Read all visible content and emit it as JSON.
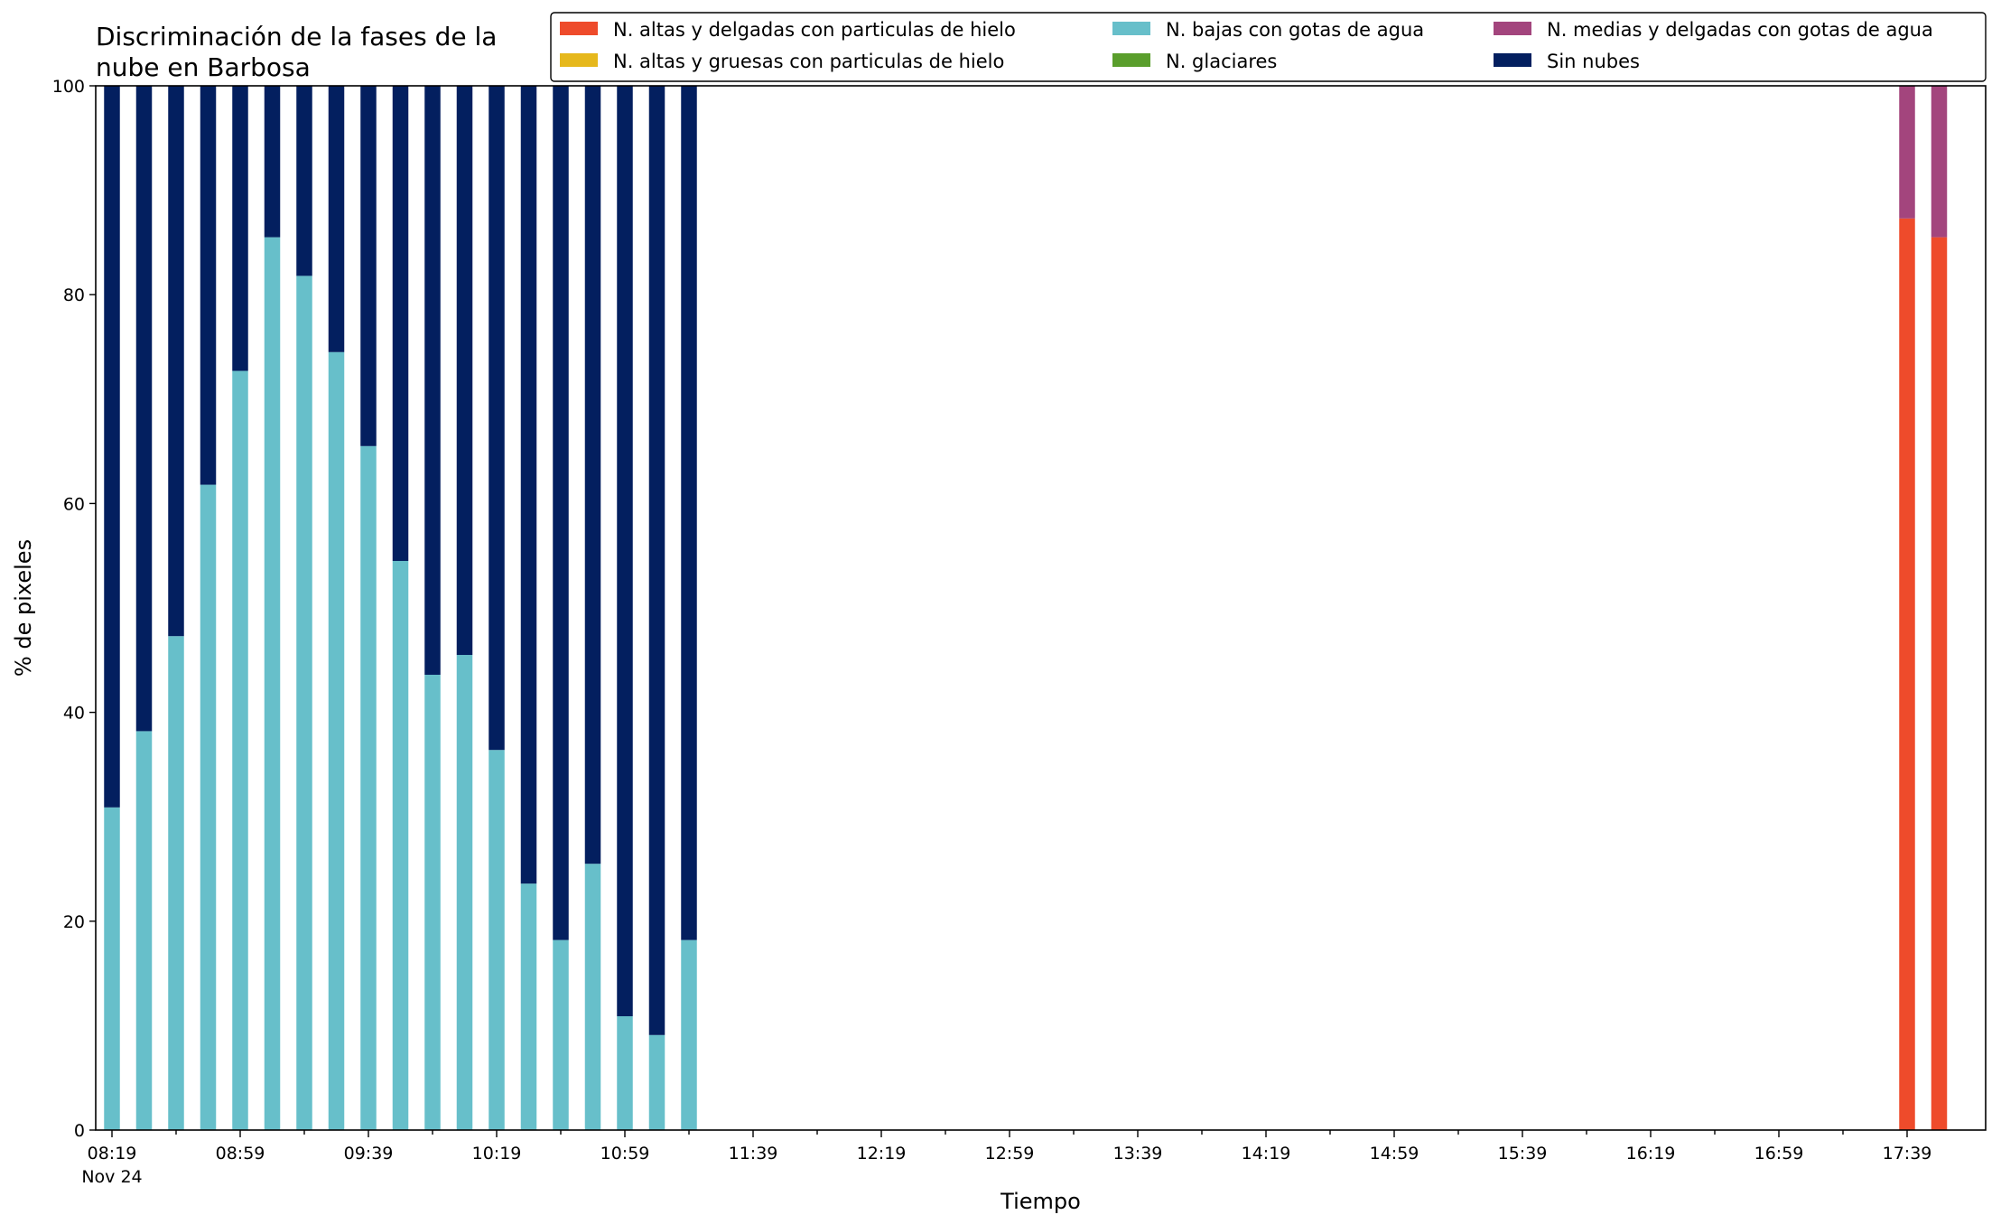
{
  "chart_data": {
    "type": "bar",
    "stacked": true,
    "title": "Discriminación de la fases de la\nnube en Barbosa",
    "xlabel": "Tiempo",
    "ylabel": "% de pixeles",
    "ylim": [
      0,
      100
    ],
    "yticks": [
      "0",
      "20",
      "40",
      "60",
      "80",
      "100"
    ],
    "xticks": [
      "08:19",
      "08:59",
      "09:39",
      "10:19",
      "10:59",
      "11:39",
      "12:19",
      "12:59",
      "13:39",
      "14:19",
      "14:59",
      "15:39",
      "16:19",
      "16:59",
      "17:39"
    ],
    "xtick_sublabel": "Nov 24",
    "legend_position": "top-right",
    "categories": [
      "08:19",
      "08:29",
      "08:39",
      "08:49",
      "08:59",
      "09:09",
      "09:19",
      "09:29",
      "09:39",
      "09:49",
      "09:59",
      "10:09",
      "10:19",
      "10:29",
      "10:39",
      "10:49",
      "10:59",
      "11:09",
      "11:19",
      "11:29",
      "11:39",
      "11:49",
      "11:59",
      "12:09",
      "12:19",
      "12:29",
      "12:39",
      "12:49",
      "12:59",
      "13:09",
      "13:19",
      "13:29",
      "13:39",
      "13:49",
      "13:59",
      "14:09",
      "14:19",
      "14:29",
      "14:39",
      "14:49",
      "14:59",
      "15:09",
      "15:19",
      "15:29",
      "15:39",
      "15:49",
      "15:59",
      "16:09",
      "16:19",
      "16:29",
      "16:39",
      "16:49",
      "16:59",
      "17:09",
      "17:19",
      "17:29",
      "17:39",
      "17:49"
    ],
    "series": [
      {
        "name": "N. altas y delgadas con particulas de hielo",
        "color": "#ee4b2b",
        "values": [
          0,
          0,
          0,
          0,
          0,
          0,
          0,
          0,
          0,
          0,
          0,
          0,
          0,
          0,
          0,
          0,
          0,
          0,
          0,
          0,
          0,
          0,
          0,
          0,
          0,
          0,
          0,
          0,
          0,
          0,
          0,
          0,
          0,
          0,
          0,
          0,
          0,
          0,
          0,
          0,
          0,
          0,
          0,
          0,
          0,
          0,
          0,
          0,
          0,
          0,
          0,
          0,
          0,
          0,
          0,
          0,
          87.3,
          85.5
        ]
      },
      {
        "name": "N. altas y gruesas con particulas de hielo",
        "color": "#e6b81c",
        "values": [
          0,
          0,
          0,
          0,
          0,
          0,
          0,
          0,
          0,
          0,
          0,
          0,
          0,
          0,
          0,
          0,
          0,
          0,
          0,
          0,
          0,
          0,
          0,
          0,
          0,
          0,
          0,
          0,
          0,
          0,
          0,
          0,
          0,
          0,
          0,
          0,
          0,
          0,
          0,
          0,
          0,
          0,
          0,
          0,
          0,
          0,
          0,
          0,
          0,
          0,
          0,
          0,
          0,
          0,
          0,
          0,
          0,
          0
        ]
      },
      {
        "name": "N. bajas con gotas de agua",
        "color": "#67bfca",
        "values": [
          30.9,
          38.2,
          47.3,
          61.8,
          72.7,
          85.5,
          81.8,
          74.5,
          65.5,
          54.5,
          43.6,
          45.5,
          36.4,
          23.6,
          18.2,
          25.5,
          10.9,
          9.1,
          18.2,
          0,
          0,
          0,
          0,
          0,
          0,
          0,
          0,
          0,
          0,
          0,
          0,
          0,
          0,
          0,
          0,
          0,
          0,
          0,
          0,
          0,
          0,
          0,
          0,
          0,
          0,
          0,
          0,
          0,
          0,
          0,
          0,
          0,
          0,
          0,
          0,
          0,
          0,
          0
        ]
      },
      {
        "name": "N. glaciares",
        "color": "#5a9e2c",
        "values": [
          0,
          0,
          0,
          0,
          0,
          0,
          0,
          0,
          0,
          0,
          0,
          0,
          0,
          0,
          0,
          0,
          0,
          0,
          0,
          0,
          0,
          0,
          0,
          0,
          0,
          0,
          0,
          0,
          0,
          0,
          0,
          0,
          0,
          0,
          0,
          0,
          0,
          0,
          0,
          0,
          0,
          0,
          0,
          0,
          0,
          0,
          0,
          0,
          0,
          0,
          0,
          0,
          0,
          0,
          0,
          0,
          0,
          0
        ]
      },
      {
        "name": "N. medias y delgadas con gotas de agua",
        "color": "#a3457d",
        "values": [
          0,
          0,
          0,
          0,
          0,
          0,
          0,
          0,
          0,
          0,
          0,
          0,
          0,
          0,
          0,
          0,
          0,
          0,
          0,
          0,
          0,
          0,
          0,
          0,
          0,
          0,
          0,
          0,
          0,
          0,
          0,
          0,
          0,
          0,
          0,
          0,
          0,
          0,
          0,
          0,
          0,
          0,
          0,
          0,
          0,
          0,
          0,
          0,
          0,
          0,
          0,
          0,
          0,
          0,
          0,
          0,
          12.7,
          14.5
        ]
      },
      {
        "name": "Sin nubes",
        "color": "#031f5f",
        "values": [
          69.1,
          61.8,
          52.7,
          38.2,
          27.3,
          14.5,
          18.2,
          25.5,
          34.5,
          45.5,
          56.4,
          54.5,
          63.6,
          76.4,
          81.8,
          74.5,
          89.1,
          90.9,
          81.8,
          0,
          0,
          0,
          0,
          0,
          0,
          0,
          0,
          0,
          0,
          0,
          0,
          0,
          0,
          0,
          0,
          0,
          0,
          0,
          0,
          0,
          0,
          0,
          0,
          0,
          0,
          0,
          0,
          0,
          0,
          0,
          0,
          0,
          0,
          0,
          0,
          0,
          0,
          0
        ]
      }
    ]
  }
}
